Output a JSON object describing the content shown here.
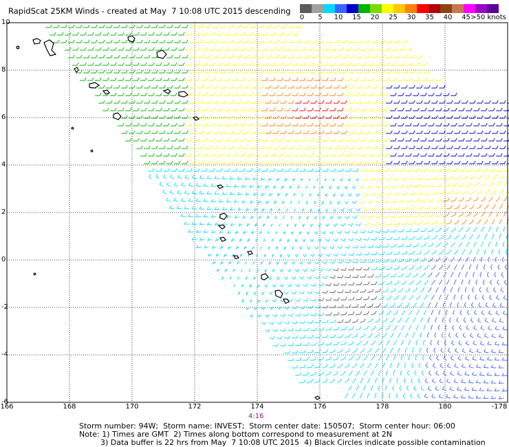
{
  "title": "RapidScat 25KM Winds - created at May  7 10:08 UTC 2015 descending",
  "colorbar": {
    "colors": [
      "#5a5a5a",
      "#a0a0a0",
      "#00d8ff",
      "#3c64ff",
      "#0000c8",
      "#00b400",
      "#78dc00",
      "#ffff00",
      "#ffc800",
      "#ff8200",
      "#ff0000",
      "#b40000",
      "#8b4513",
      "#c87850",
      "#ff00ff",
      "#9b00c8",
      "#5a0096"
    ],
    "labels": [
      "0",
      "5",
      "10",
      "15",
      "20",
      "25",
      "30",
      "35",
      "40",
      "45",
      ">50 knots"
    ]
  },
  "axes": {
    "y_labels": [
      "10",
      "8",
      "6",
      "4",
      "2",
      "0",
      "-2",
      "-4",
      "-6"
    ],
    "x_labels": [
      "166",
      "168",
      "170",
      "172",
      "174",
      "176",
      "178",
      "180",
      "-178"
    ]
  },
  "time_label": "4:16",
  "footer": {
    "line1": "Storm number: 94W;  Storm name: INVEST;  Storm center date: 150507;  Storm center hour: 06:00",
    "line2": "Note: 1) Times are GMT  2) Times along bottom correspond to measurement at 2N",
    "line3": "3) Data buffer is 22 hrs from May  7 10:08 UTC 2015  4) Black Circles indicate possible contamination"
  }
}
